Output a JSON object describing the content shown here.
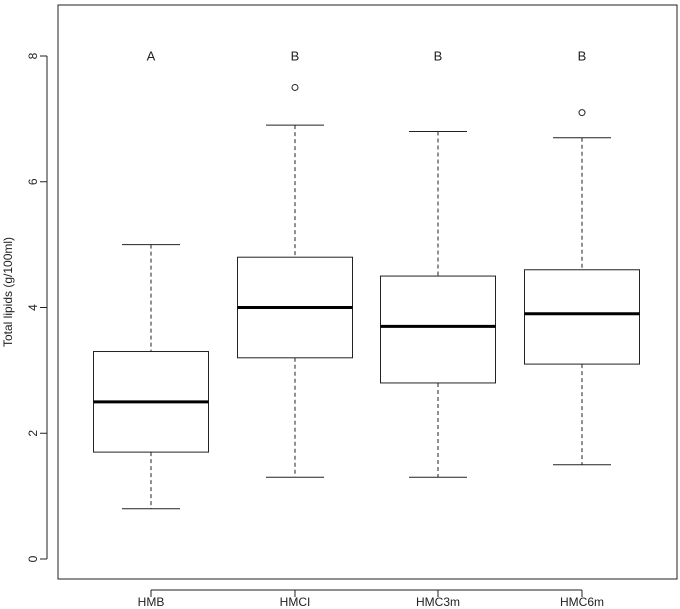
{
  "chart_data": {
    "type": "boxplot",
    "title": "",
    "xlabel": "",
    "ylabel": "Total lipids (g/100ml)",
    "ylim": [
      -0.4,
      8.8
    ],
    "yticks": [
      0,
      2,
      4,
      6,
      8
    ],
    "categories": [
      "HMB",
      "HMCI",
      "HMC3m",
      "HMC6m"
    ],
    "boxes": [
      {
        "name": "HMB",
        "whisker_low": 0.8,
        "q1": 1.7,
        "median": 2.5,
        "q3": 3.3,
        "whisker_high": 5.0,
        "outliers": []
      },
      {
        "name": "HMCI",
        "whisker_low": 1.3,
        "q1": 3.2,
        "median": 4.0,
        "q3": 4.8,
        "whisker_high": 6.9,
        "outliers": [
          7.5
        ]
      },
      {
        "name": "HMC3m",
        "whisker_low": 1.3,
        "q1": 2.8,
        "median": 3.7,
        "q3": 4.5,
        "whisker_high": 6.8,
        "outliers": []
      },
      {
        "name": "HMC6m",
        "whisker_low": 1.5,
        "q1": 3.1,
        "median": 3.9,
        "q3": 4.6,
        "whisker_high": 6.7,
        "outliers": [
          7.1
        ]
      }
    ],
    "group_letters": [
      "A",
      "B",
      "B",
      "B"
    ],
    "group_letter_y": 8.0,
    "grid": false,
    "legend": "none"
  }
}
